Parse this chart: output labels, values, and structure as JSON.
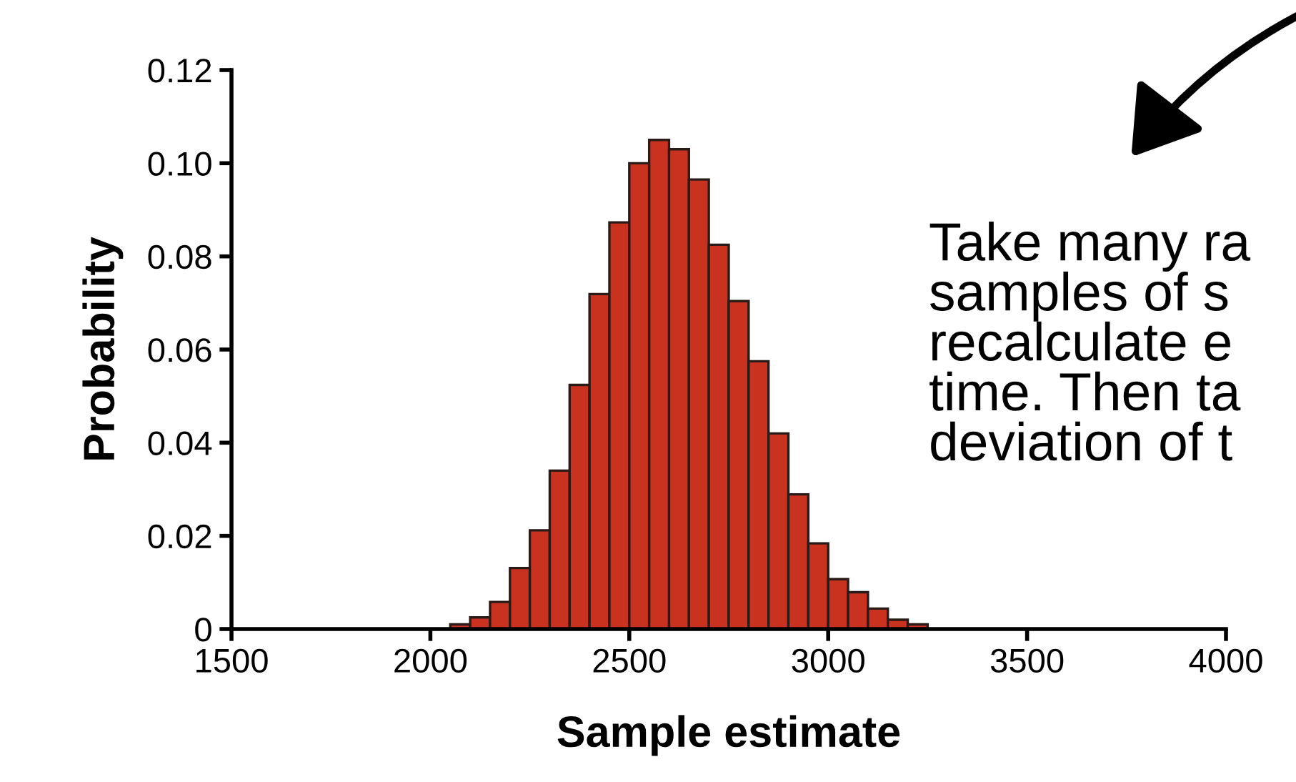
{
  "chart_data": {
    "type": "histogram",
    "xlabel": "Sample estimate",
    "ylabel": "Probability",
    "bins": [
      2050,
      2100,
      2150,
      2200,
      2250,
      2300,
      2350,
      2400,
      2450,
      2500,
      2550,
      2600,
      2650,
      2700,
      2750,
      2800,
      2850,
      2900,
      2950,
      3000,
      3050,
      3100,
      3150,
      3200,
      3250,
      3300,
      3350
    ],
    "values": [
      0.001,
      0.0025,
      0.0058,
      0.0131,
      0.0212,
      0.034,
      0.0524,
      0.0719,
      0.0873,
      0.1,
      0.105,
      0.103,
      0.0965,
      0.0825,
      0.0704,
      0.0575,
      0.042,
      0.0289,
      0.0184,
      0.0107,
      0.0079,
      0.0044,
      0.002,
      0.001,
      null,
      null
    ],
    "color": "#c8321e",
    "xlim": [
      1500,
      4000
    ],
    "ylim": [
      0,
      0.12
    ],
    "xticks": [
      1500,
      2000,
      2500,
      3000,
      3500,
      4000
    ],
    "yticks": [
      {
        "value": 0,
        "label": "0"
      },
      {
        "value": 0.02,
        "label": "0.02"
      },
      {
        "value": 0.04,
        "label": "0.04"
      },
      {
        "value": 0.06,
        "label": "0.06"
      },
      {
        "value": 0.08,
        "label": "0.08"
      },
      {
        "value": 0.1,
        "label": "0.10"
      },
      {
        "value": 0.12,
        "label": "0.12"
      }
    ],
    "annotations": [
      "Take many ra\nsamples of s\nrecalculate e\ntime. Then ta\ndeviation of t"
    ],
    "grid": false,
    "legend": false
  }
}
